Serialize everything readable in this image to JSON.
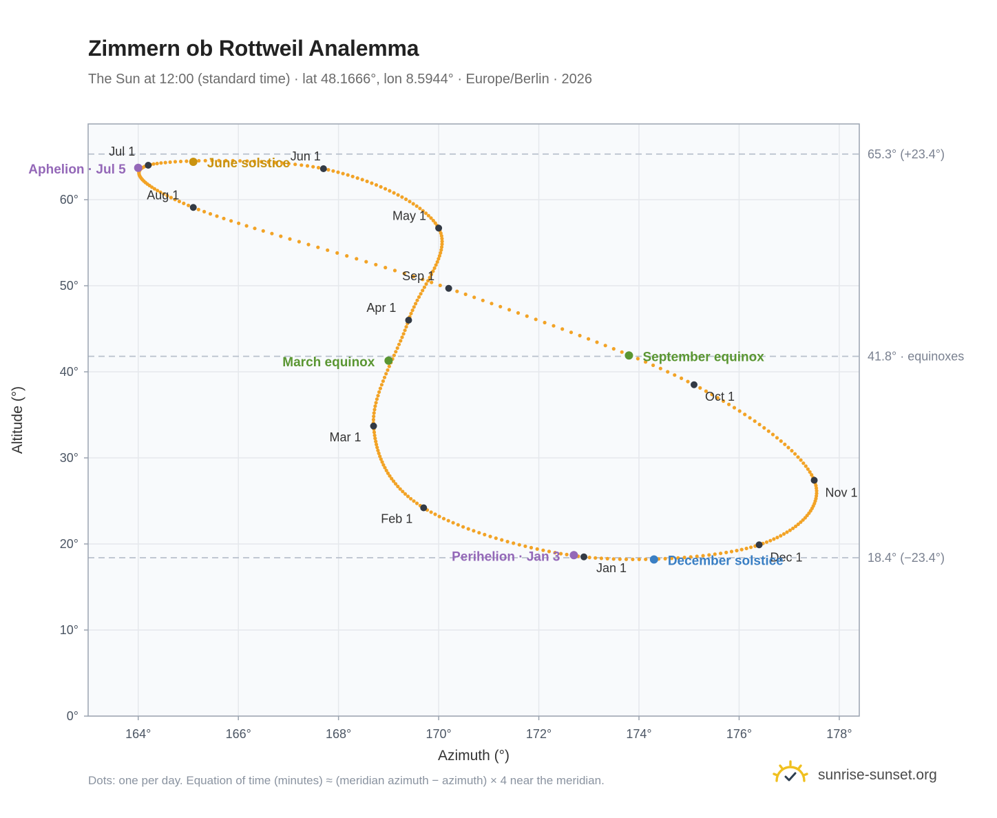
{
  "header": {
    "title": "Zimmern ob Rottweil Analemma",
    "subtitle": "The Sun at 12:00 (standard time) · lat 48.1666°, lon 8.5944° · Europe/Berlin · 2026"
  },
  "footer": {
    "note": "Dots: one per day. Equation of time (minutes) ≈ (meridian azimuth − azimuth) × 4 near the meridian.",
    "brand": "sunrise-sunset.org",
    "brand_icon": "sun-horizon-check-icon"
  },
  "colors": {
    "curve": "#f2a326",
    "month": "#333a45",
    "june": "#c9920f",
    "december": "#3a7fc4",
    "equinox": "#5a9632",
    "apsis": "#9468b8",
    "ref": "#b8c0cc",
    "plot_bg": "#f8fafc",
    "grid": "#e5e8ec",
    "frame": "#9aa3b0"
  },
  "chart_data": {
    "type": "scatter",
    "xlabel": "Azimuth (°)",
    "ylabel": "Altitude (°)",
    "xlim": [
      163,
      178.4
    ],
    "ylim": [
      0,
      68.8
    ],
    "xticks": [
      164,
      166,
      168,
      170,
      172,
      174,
      176,
      178
    ],
    "xtick_labels": [
      "164°",
      "166°",
      "168°",
      "170°",
      "172°",
      "174°",
      "176°",
      "178°"
    ],
    "yticks": [
      0,
      10,
      20,
      30,
      40,
      50,
      60
    ],
    "ytick_labels": [
      "0°",
      "10°",
      "20°",
      "30°",
      "40°",
      "50°",
      "60°"
    ],
    "grid": true,
    "reference_lines": [
      {
        "y": 65.3,
        "label": "65.3° (+23.4°)"
      },
      {
        "y": 41.8,
        "label": "41.8° · equinoxes"
      },
      {
        "y": 18.4,
        "label": "18.4° (−23.4°)"
      }
    ],
    "months": [
      {
        "label": "Jan 1",
        "x": 172.9,
        "y": 18.5
      },
      {
        "label": "Feb 1",
        "x": 169.7,
        "y": 24.2
      },
      {
        "label": "Mar 1",
        "x": 168.7,
        "y": 33.7
      },
      {
        "label": "Apr 1",
        "x": 169.4,
        "y": 46.0
      },
      {
        "label": "May 1",
        "x": 170.0,
        "y": 56.7
      },
      {
        "label": "Jun 1",
        "x": 167.7,
        "y": 63.6
      },
      {
        "label": "Jul 1",
        "x": 164.2,
        "y": 64.0
      },
      {
        "label": "Aug 1",
        "x": 165.1,
        "y": 59.1
      },
      {
        "label": "Sep 1",
        "x": 170.2,
        "y": 49.7
      },
      {
        "label": "Oct 1",
        "x": 175.1,
        "y": 38.5
      },
      {
        "label": "Nov 1",
        "x": 177.5,
        "y": 27.4
      },
      {
        "label": "Dec 1",
        "x": 176.4,
        "y": 19.9
      }
    ],
    "events": [
      {
        "label": "June solstice",
        "x": 165.1,
        "y": 64.4,
        "color": "june"
      },
      {
        "label": "December solstice",
        "x": 174.3,
        "y": 18.2,
        "color": "december"
      },
      {
        "label": "March equinox",
        "x": 169.0,
        "y": 41.3,
        "color": "equinox"
      },
      {
        "label": "September equinox",
        "x": 173.8,
        "y": 41.9,
        "color": "equinox"
      },
      {
        "label": "Aphelion · Jul 5",
        "x": 164.0,
        "y": 63.7,
        "color": "apsis"
      },
      {
        "label": "Perihelion · Jan 3",
        "x": 172.7,
        "y": 18.7,
        "color": "apsis"
      }
    ]
  }
}
